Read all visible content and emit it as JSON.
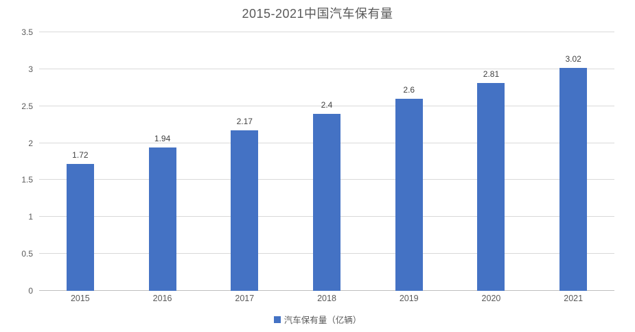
{
  "chart_data": {
    "type": "bar",
    "title": "2015-2021中国汽车保有量",
    "categories": [
      "2015",
      "2016",
      "2017",
      "2018",
      "2019",
      "2020",
      "2021"
    ],
    "values": [
      1.72,
      1.94,
      2.17,
      2.4,
      2.6,
      2.81,
      3.02
    ],
    "value_labels": [
      "1.72",
      "1.94",
      "2.17",
      "2.4",
      "2.6",
      "2.81",
      "3.02"
    ],
    "series": [
      {
        "name": "汽车保有量（亿辆）",
        "values": [
          1.72,
          1.94,
          2.17,
          2.4,
          2.6,
          2.81,
          3.02
        ]
      }
    ],
    "legend": "汽车保有量（亿辆）",
    "legend_position": "bottom",
    "xlabel": "",
    "ylabel": "",
    "ylim": [
      0,
      3.5
    ],
    "ytick_step": 0.5,
    "ytick_labels": [
      "0",
      "0.5",
      "1",
      "1.5",
      "2",
      "2.5",
      "3",
      "3.5"
    ],
    "grid": true,
    "colors": {
      "bar": "#4472C4",
      "gridline": "#D9D9D9",
      "axis_line": "#BFBFBF",
      "title_text": "#595959",
      "axis_text": "#595959",
      "data_label_text": "#404040",
      "background": "#FFFFFF"
    }
  }
}
